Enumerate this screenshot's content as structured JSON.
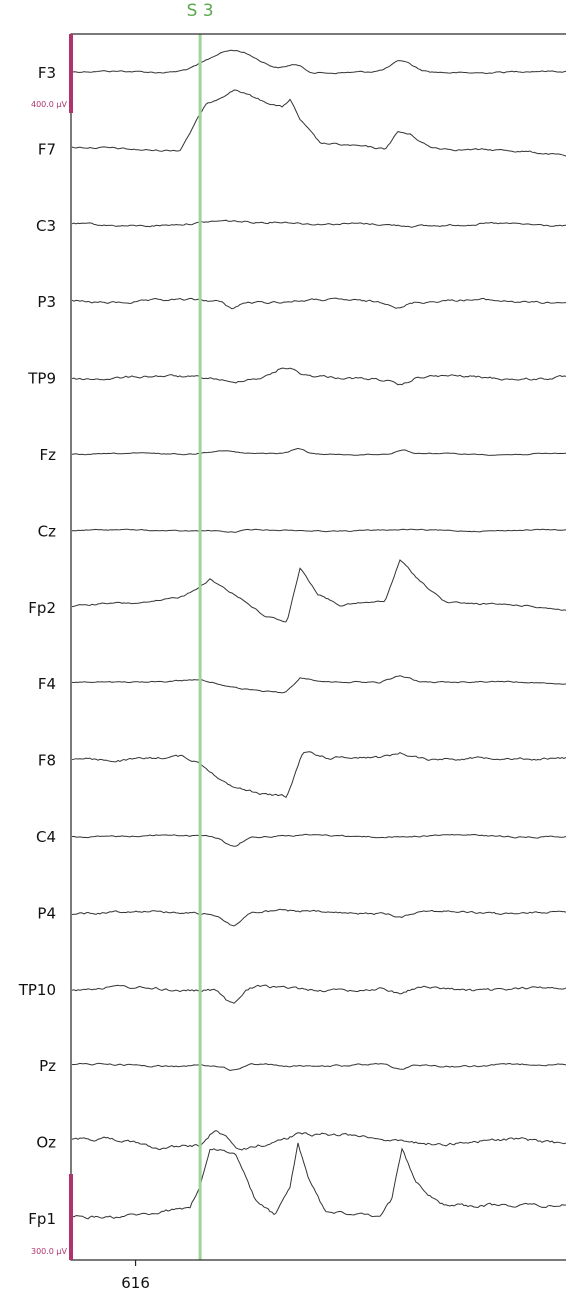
{
  "chart_data": {
    "type": "line",
    "channels": [
      "F3",
      "F7",
      "C3",
      "P3",
      "TP9",
      "Fz",
      "Cz",
      "Fp2",
      "F4",
      "F8",
      "C4",
      "P4",
      "TP10",
      "Pz",
      "Oz",
      "Fp1"
    ],
    "event_marker": {
      "label": "S  3",
      "time": 616.3,
      "color": "#9fd39a",
      "label_color": "#5aa84c"
    },
    "scale_bars": [
      {
        "label": "400.0 µV",
        "channel": "F3",
        "color": "#b0336e"
      },
      {
        "label": "300.0 µV",
        "channel": "Fp1",
        "color": "#b0336e"
      }
    ],
    "xlim": [
      615.7,
      618.0
    ],
    "x_ticks": [
      616
    ],
    "x_tick_labels": [
      "616"
    ],
    "trace_color": "#333333",
    "axis_color": "#222222"
  }
}
